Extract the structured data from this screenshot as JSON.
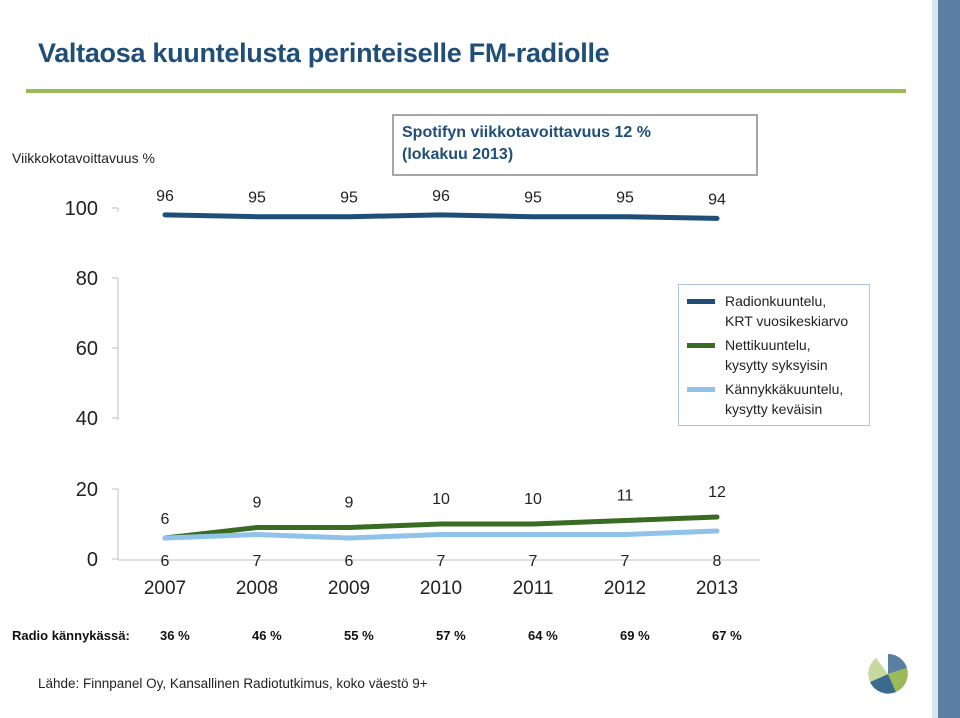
{
  "title": "Valtaosa kuuntelusta perinteiselle FM-radiolle",
  "y_axis_title": "Viikkokotavoittavuus %",
  "spotify_note": {
    "line1": "Spotifyn viikkotavoittavuus  12 %",
    "line2": "(lokakuu 2013)"
  },
  "colors": {
    "title": "#1f4e79",
    "accent_rule": "#9bbb59",
    "radio": "#1f4e79",
    "netti": "#3a6b23",
    "kannykka": "#8fc3ea"
  },
  "chart_data": {
    "type": "line",
    "x": [
      "2007",
      "2008",
      "2009",
      "2010",
      "2011",
      "2012",
      "2013"
    ],
    "y_ticks": [
      "100",
      "80",
      "60",
      "40",
      "20",
      "0"
    ],
    "axis_break": true,
    "grid": false,
    "legend_position": "right",
    "series": [
      {
        "name": "Radionkuuntelu, KRT vuosikeskiarvo",
        "labels": [
          "Radionkuuntelu,",
          "KRT vuosikeskiarvo"
        ],
        "values": [
          96,
          95,
          95,
          96,
          95,
          95,
          94
        ]
      },
      {
        "name": "Nettikuuntelu, kysytty syksyisin",
        "labels": [
          "Nettikuuntelu,",
          "kysytty syksyisin"
        ],
        "values": [
          6,
          9,
          9,
          10,
          10,
          11,
          12
        ]
      },
      {
        "name": "Kännykkäkuuntelu, kysytty keväisin",
        "labels": [
          "Kännykkäkuuntelu,",
          "kysytty keväisin"
        ],
        "values": [
          6,
          7,
          6,
          7,
          7,
          7,
          8
        ]
      }
    ]
  },
  "radio_phone": {
    "label": "Radio kännykässä:",
    "values": [
      "36 %",
      "46 %",
      "55 %",
      "57 %",
      "64 %",
      "69 %",
      "67 %"
    ]
  },
  "source": "Lähde: Finnpanel Oy, Kansallinen Radiotutkimus, koko väestö 9+"
}
